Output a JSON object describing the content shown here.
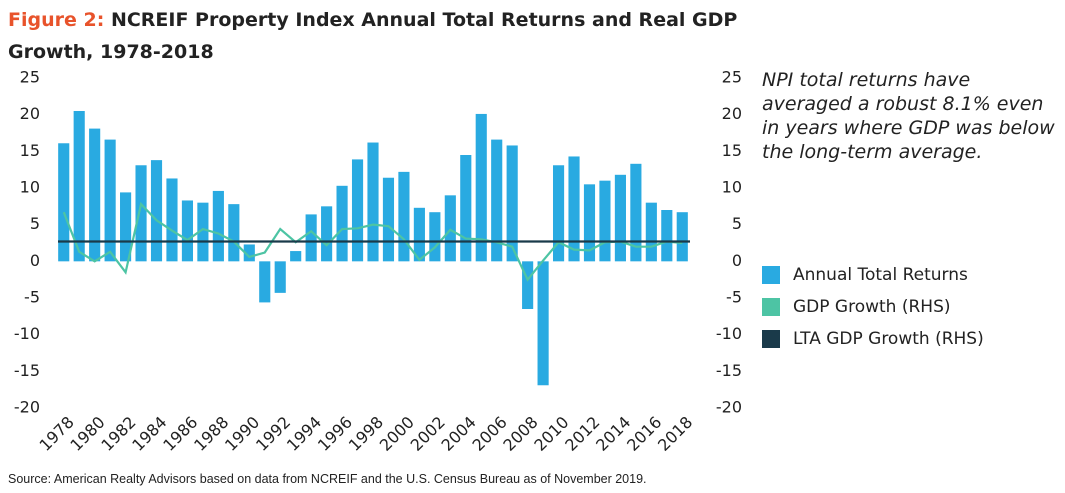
{
  "chart_data": {
    "type": "bar",
    "figure_label": "Figure 2:",
    "title": "NCREIF Property Index Annual Total Returns and Real GDP Growth, 1978-2018",
    "annotation": "NPI total returns have averaged a robust 8.1% even in years where GDP was below the long-term average.",
    "source": "Source: American Realty Advisors based on data from NCREIF and the U.S. Census Bureau as of November 2019.",
    "categories": [
      "1978",
      null,
      "1980",
      null,
      "1982",
      null,
      "1984",
      null,
      "1986",
      null,
      "1988",
      null,
      "1990",
      null,
      "1992",
      null,
      "1994",
      null,
      "1996",
      null,
      "1998",
      null,
      "2000",
      null,
      "2002",
      null,
      "2004",
      null,
      "2006",
      null,
      "2008",
      null,
      "2010",
      null,
      "2012",
      null,
      "2014",
      null,
      "2016",
      null,
      "2018"
    ],
    "series": [
      {
        "name": "Annual Total Returns",
        "color": "#29aae1",
        "kind": "bar",
        "values": [
          16.1,
          20.5,
          18.1,
          16.6,
          9.4,
          13.1,
          13.8,
          11.3,
          8.3,
          8.0,
          9.6,
          7.8,
          2.3,
          -5.6,
          -4.3,
          1.4,
          6.4,
          7.5,
          10.3,
          13.9,
          16.2,
          11.4,
          12.2,
          7.3,
          6.7,
          9.0,
          14.5,
          20.1,
          16.6,
          15.8,
          -6.5,
          -16.9,
          13.1,
          14.3,
          10.5,
          11.0,
          11.8,
          13.3,
          8.0,
          7.0,
          6.7
        ]
      },
      {
        "name": "GDP Growth (RHS)",
        "color": "#4dc4a4",
        "kind": "line",
        "axis": "y2",
        "values": [
          6.7,
          1.3,
          0.0,
          1.3,
          -1.5,
          7.8,
          5.6,
          4.2,
          2.9,
          4.4,
          3.8,
          2.7,
          0.6,
          1.2,
          4.4,
          2.6,
          4.1,
          2.2,
          4.4,
          4.5,
          5.0,
          4.8,
          3.0,
          0.2,
          1.9,
          4.3,
          3.1,
          3.0,
          2.6,
          2.0,
          -2.5,
          0.1,
          2.6,
          1.6,
          1.5,
          2.6,
          2.7,
          2.0,
          2.0,
          2.7,
          2.5
        ]
      },
      {
        "name": "LTA GDP Growth (RHS)",
        "color": "#1a3a4a",
        "kind": "hline",
        "axis": "y2",
        "value": 2.7
      }
    ],
    "ylim": [
      -20,
      25
    ],
    "yticks": [
      -20,
      -15,
      -10,
      -5,
      0,
      5,
      10,
      15,
      20,
      25
    ],
    "y2lim": [
      -20,
      25
    ],
    "y2ticks": [
      -20,
      -15,
      -10,
      -5,
      0,
      5,
      10,
      15,
      20,
      25
    ],
    "grid": false
  }
}
